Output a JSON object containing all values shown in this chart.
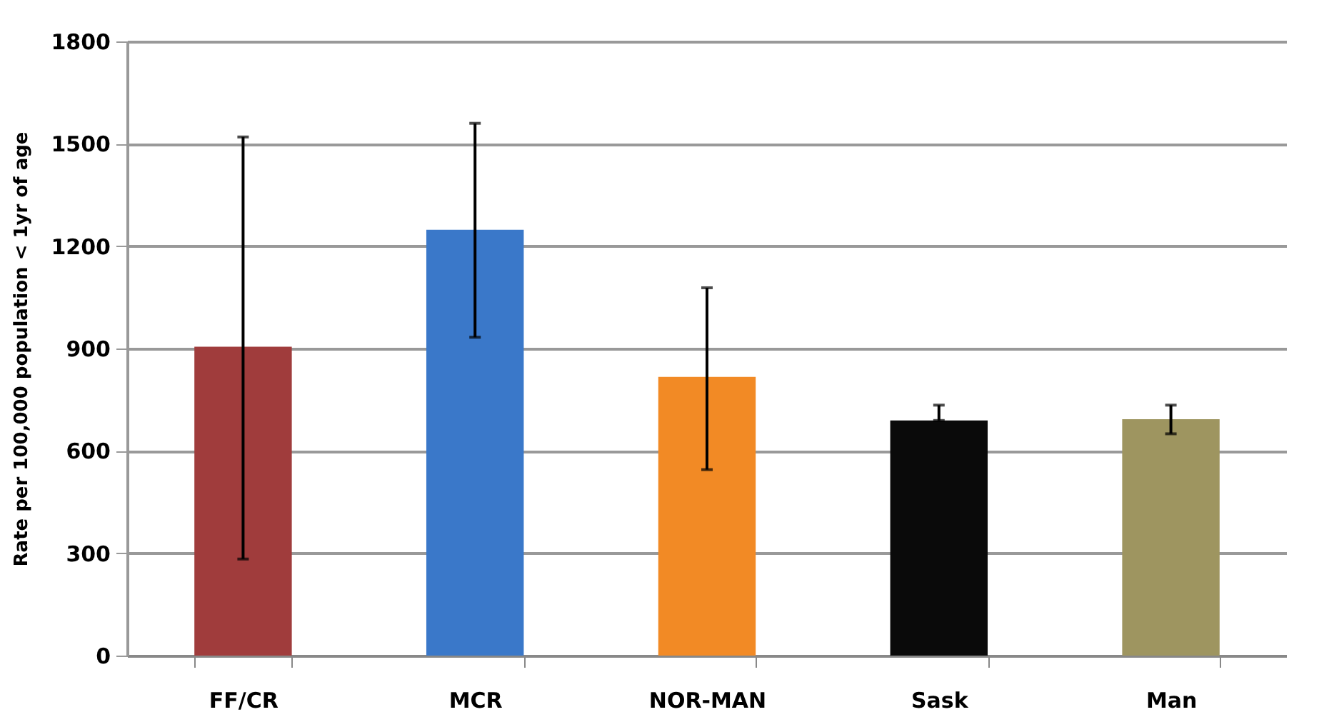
{
  "chart_data": {
    "type": "bar",
    "ylabel": "Rate per 100,000 population < 1yr of age",
    "categories": [
      "FF/CR",
      "MCR",
      "NOR-MAN",
      "Sask",
      "Man"
    ],
    "values": [
      905,
      1248,
      817,
      689,
      693
    ],
    "colors": [
      "#a03c3c",
      "#3a78c9",
      "#f28a25",
      "#0a0a0a",
      "#9e9560"
    ],
    "errors": [
      [
        283,
        1520
      ],
      [
        933,
        1560
      ],
      [
        545,
        1078
      ],
      [
        689,
        734
      ],
      [
        650,
        734
      ]
    ],
    "ylim": [
      0,
      1800
    ],
    "yticks": [
      0,
      300,
      600,
      900,
      1200,
      1500,
      1800
    ],
    "grid": "y"
  }
}
